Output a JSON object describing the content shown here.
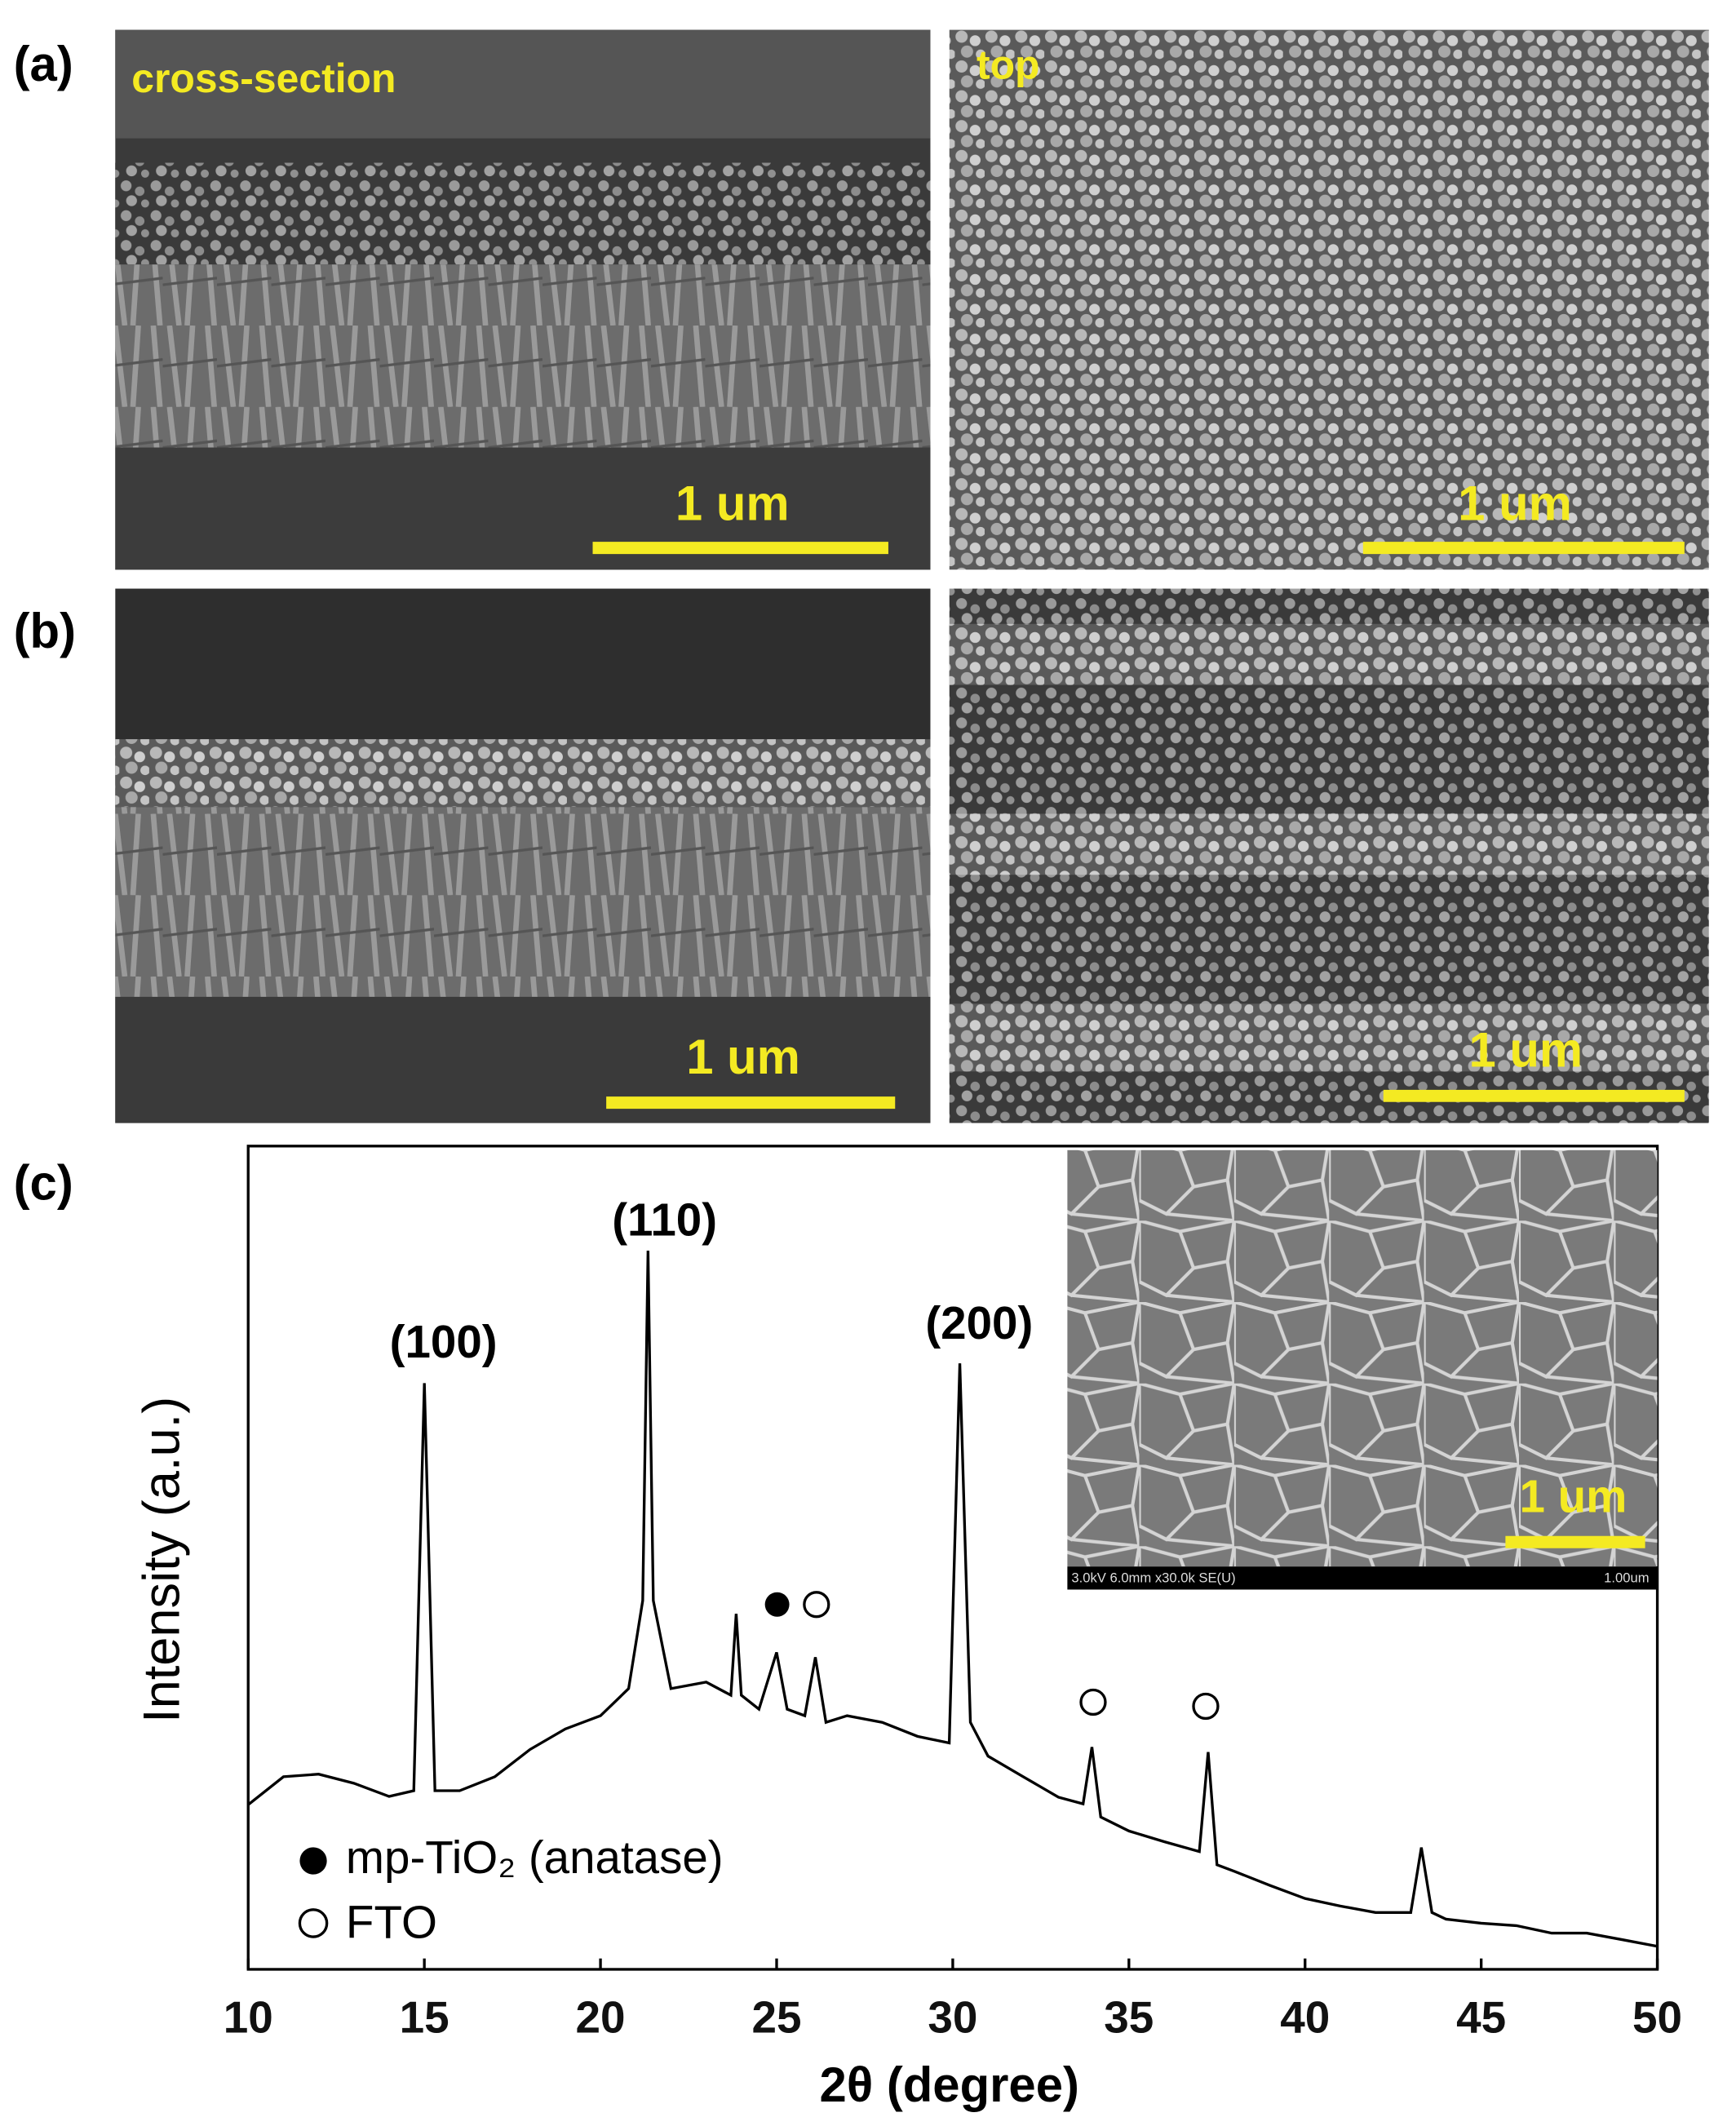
{
  "figure": {
    "panel_labels": [
      "(a)",
      "(b)",
      "(c)"
    ],
    "images": [
      {
        "label": "cross-section",
        "scale_bar": "1 um"
      },
      {
        "label": "top",
        "scale_bar": "1 um"
      },
      {
        "scale_bar": "1 um"
      },
      {
        "scale_bar": "1 um"
      }
    ]
  },
  "chart_data": {
    "type": "line",
    "xlabel": "2θ (degree)",
    "ylabel": "Intensity (a.u.)",
    "x": [
      10,
      11,
      12,
      13,
      14,
      14.7,
      15.0,
      15.3,
      16,
      17,
      18,
      19,
      20,
      20.8,
      21.2,
      21.35,
      21.5,
      22,
      23,
      23.7,
      23.85,
      24.0,
      24.5,
      25.0,
      25.3,
      25.8,
      26.1,
      26.4,
      27,
      28,
      29,
      29.9,
      30.2,
      30.5,
      31,
      32,
      33,
      33.7,
      33.95,
      34.2,
      35,
      36,
      37,
      37.25,
      37.5,
      38,
      39,
      40,
      41,
      42,
      43,
      43.3,
      43.6,
      44,
      45,
      46,
      47,
      48,
      49,
      50
    ],
    "series": [
      {
        "color": "#000000",
        "values": [
          20,
          23.4,
          23.7,
          22.6,
          21,
          21.7,
          71.2,
          21.7,
          21.7,
          23.4,
          26.7,
          29.2,
          30.8,
          34.1,
          44.8,
          87.3,
          44.8,
          34.1,
          34.9,
          33.3,
          43.2,
          33.3,
          31.6,
          38.5,
          31.6,
          30.8,
          37.9,
          30,
          30.8,
          30,
          28.3,
          27.5,
          73.6,
          30,
          25.9,
          23.4,
          20.9,
          20.1,
          27,
          18.5,
          16.8,
          15.5,
          14.3,
          26.4,
          12.7,
          11.9,
          10.2,
          8.6,
          7.7,
          6.9,
          6.9,
          14.8,
          6.9,
          6.1,
          5.6,
          5.3,
          4.4,
          4.4,
          3.6,
          2.8
        ]
      }
    ],
    "xlim": [
      10,
      50
    ],
    "ylim": [
      0,
      100
    ],
    "xticks": [
      10,
      15,
      20,
      25,
      30,
      35,
      40,
      45,
      50
    ],
    "annotations": [
      "(100)",
      "(110)",
      "(200)"
    ],
    "legend": [
      "mp-TiO₂ (anatase)",
      "FTO"
    ],
    "inset": {
      "scale_bar": "1 um",
      "info": "3.0kV 6.0mm x30.0k SE(U)",
      "info_scale": "1.00um"
    }
  }
}
